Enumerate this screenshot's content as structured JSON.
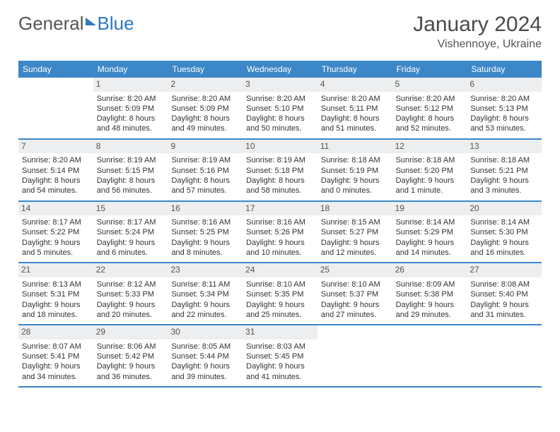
{
  "logo": {
    "part1": "General",
    "part2": "Blue"
  },
  "title": "January 2024",
  "location": "Vishennoye, Ukraine",
  "colors": {
    "header_bg": "#3c87c7",
    "header_text": "#ffffff",
    "daynum_bg": "#eceeef",
    "text": "#333333",
    "title_color": "#4a4a4a",
    "divider": "#3c87c7"
  },
  "day_headers": [
    "Sunday",
    "Monday",
    "Tuesday",
    "Wednesday",
    "Thursday",
    "Friday",
    "Saturday"
  ],
  "weeks": [
    [
      {
        "empty": true
      },
      {
        "num": "1",
        "sunrise": "Sunrise: 8:20 AM",
        "sunset": "Sunset: 5:09 PM",
        "daylight": "Daylight: 8 hours and 48 minutes."
      },
      {
        "num": "2",
        "sunrise": "Sunrise: 8:20 AM",
        "sunset": "Sunset: 5:09 PM",
        "daylight": "Daylight: 8 hours and 49 minutes."
      },
      {
        "num": "3",
        "sunrise": "Sunrise: 8:20 AM",
        "sunset": "Sunset: 5:10 PM",
        "daylight": "Daylight: 8 hours and 50 minutes."
      },
      {
        "num": "4",
        "sunrise": "Sunrise: 8:20 AM",
        "sunset": "Sunset: 5:11 PM",
        "daylight": "Daylight: 8 hours and 51 minutes."
      },
      {
        "num": "5",
        "sunrise": "Sunrise: 8:20 AM",
        "sunset": "Sunset: 5:12 PM",
        "daylight": "Daylight: 8 hours and 52 minutes."
      },
      {
        "num": "6",
        "sunrise": "Sunrise: 8:20 AM",
        "sunset": "Sunset: 5:13 PM",
        "daylight": "Daylight: 8 hours and 53 minutes."
      }
    ],
    [
      {
        "num": "7",
        "sunrise": "Sunrise: 8:20 AM",
        "sunset": "Sunset: 5:14 PM",
        "daylight": "Daylight: 8 hours and 54 minutes."
      },
      {
        "num": "8",
        "sunrise": "Sunrise: 8:19 AM",
        "sunset": "Sunset: 5:15 PM",
        "daylight": "Daylight: 8 hours and 56 minutes."
      },
      {
        "num": "9",
        "sunrise": "Sunrise: 8:19 AM",
        "sunset": "Sunset: 5:16 PM",
        "daylight": "Daylight: 8 hours and 57 minutes."
      },
      {
        "num": "10",
        "sunrise": "Sunrise: 8:19 AM",
        "sunset": "Sunset: 5:18 PM",
        "daylight": "Daylight: 8 hours and 58 minutes."
      },
      {
        "num": "11",
        "sunrise": "Sunrise: 8:18 AM",
        "sunset": "Sunset: 5:19 PM",
        "daylight": "Daylight: 9 hours and 0 minutes."
      },
      {
        "num": "12",
        "sunrise": "Sunrise: 8:18 AM",
        "sunset": "Sunset: 5:20 PM",
        "daylight": "Daylight: 9 hours and 1 minute."
      },
      {
        "num": "13",
        "sunrise": "Sunrise: 8:18 AM",
        "sunset": "Sunset: 5:21 PM",
        "daylight": "Daylight: 9 hours and 3 minutes."
      }
    ],
    [
      {
        "num": "14",
        "sunrise": "Sunrise: 8:17 AM",
        "sunset": "Sunset: 5:22 PM",
        "daylight": "Daylight: 9 hours and 5 minutes."
      },
      {
        "num": "15",
        "sunrise": "Sunrise: 8:17 AM",
        "sunset": "Sunset: 5:24 PM",
        "daylight": "Daylight: 9 hours and 6 minutes."
      },
      {
        "num": "16",
        "sunrise": "Sunrise: 8:16 AM",
        "sunset": "Sunset: 5:25 PM",
        "daylight": "Daylight: 9 hours and 8 minutes."
      },
      {
        "num": "17",
        "sunrise": "Sunrise: 8:16 AM",
        "sunset": "Sunset: 5:26 PM",
        "daylight": "Daylight: 9 hours and 10 minutes."
      },
      {
        "num": "18",
        "sunrise": "Sunrise: 8:15 AM",
        "sunset": "Sunset: 5:27 PM",
        "daylight": "Daylight: 9 hours and 12 minutes."
      },
      {
        "num": "19",
        "sunrise": "Sunrise: 8:14 AM",
        "sunset": "Sunset: 5:29 PM",
        "daylight": "Daylight: 9 hours and 14 minutes."
      },
      {
        "num": "20",
        "sunrise": "Sunrise: 8:14 AM",
        "sunset": "Sunset: 5:30 PM",
        "daylight": "Daylight: 9 hours and 16 minutes."
      }
    ],
    [
      {
        "num": "21",
        "sunrise": "Sunrise: 8:13 AM",
        "sunset": "Sunset: 5:31 PM",
        "daylight": "Daylight: 9 hours and 18 minutes."
      },
      {
        "num": "22",
        "sunrise": "Sunrise: 8:12 AM",
        "sunset": "Sunset: 5:33 PM",
        "daylight": "Daylight: 9 hours and 20 minutes."
      },
      {
        "num": "23",
        "sunrise": "Sunrise: 8:11 AM",
        "sunset": "Sunset: 5:34 PM",
        "daylight": "Daylight: 9 hours and 22 minutes."
      },
      {
        "num": "24",
        "sunrise": "Sunrise: 8:10 AM",
        "sunset": "Sunset: 5:35 PM",
        "daylight": "Daylight: 9 hours and 25 minutes."
      },
      {
        "num": "25",
        "sunrise": "Sunrise: 8:10 AM",
        "sunset": "Sunset: 5:37 PM",
        "daylight": "Daylight: 9 hours and 27 minutes."
      },
      {
        "num": "26",
        "sunrise": "Sunrise: 8:09 AM",
        "sunset": "Sunset: 5:38 PM",
        "daylight": "Daylight: 9 hours and 29 minutes."
      },
      {
        "num": "27",
        "sunrise": "Sunrise: 8:08 AM",
        "sunset": "Sunset: 5:40 PM",
        "daylight": "Daylight: 9 hours and 31 minutes."
      }
    ],
    [
      {
        "num": "28",
        "sunrise": "Sunrise: 8:07 AM",
        "sunset": "Sunset: 5:41 PM",
        "daylight": "Daylight: 9 hours and 34 minutes."
      },
      {
        "num": "29",
        "sunrise": "Sunrise: 8:06 AM",
        "sunset": "Sunset: 5:42 PM",
        "daylight": "Daylight: 9 hours and 36 minutes."
      },
      {
        "num": "30",
        "sunrise": "Sunrise: 8:05 AM",
        "sunset": "Sunset: 5:44 PM",
        "daylight": "Daylight: 9 hours and 39 minutes."
      },
      {
        "num": "31",
        "sunrise": "Sunrise: 8:03 AM",
        "sunset": "Sunset: 5:45 PM",
        "daylight": "Daylight: 9 hours and 41 minutes."
      },
      {
        "empty": true
      },
      {
        "empty": true
      },
      {
        "empty": true
      }
    ]
  ]
}
